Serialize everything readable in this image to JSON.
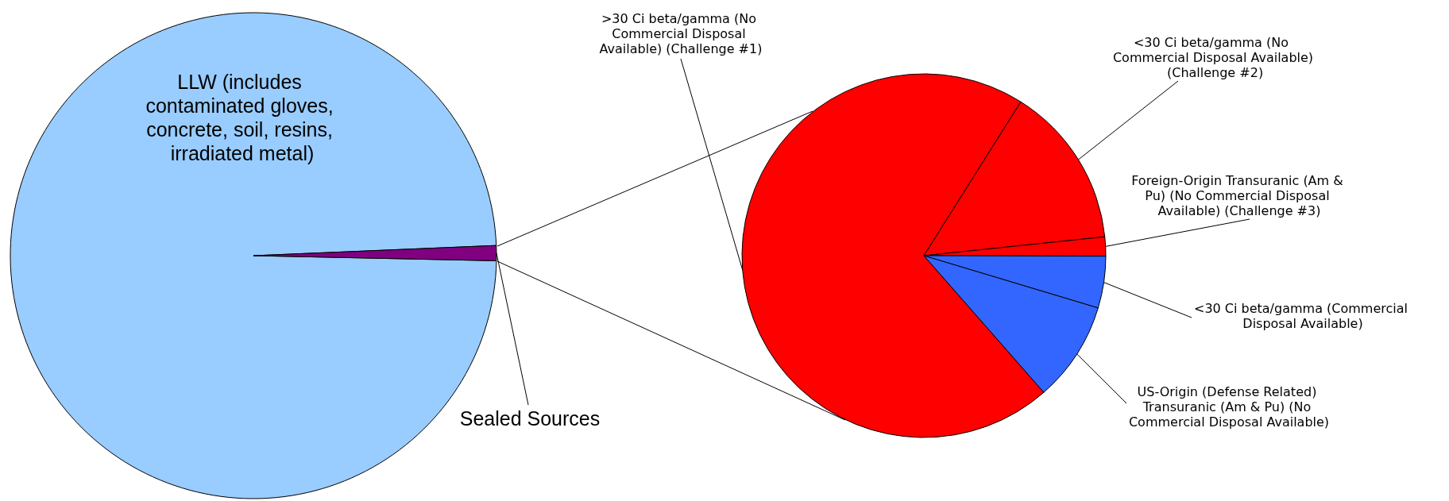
{
  "chart_data": [
    {
      "type": "pie",
      "categories": [
        "LLW (includes contaminated gloves, concrete, soil, resins, irradiated metal)",
        "Sealed Sources"
      ],
      "values": [
        99,
        1
      ],
      "colors": [
        "#99ccff",
        "#800080"
      ]
    },
    {
      "type": "pie",
      "categories": [
        ">30 Ci beta/gamma (No Commercial Disposal Available) (Challenge #1)",
        "<30 Ci beta/gamma (No Commercial Disposal Available) (Challenge #2)",
        "Foreign-Origin Transuranic (Am & Pu) (No Commercial Disposal Available) (Challenge #3)",
        "<30 Ci beta/gamma (Commercial Disposal Available)",
        "US-Origin (Defense Related) Transuranic (Am & Pu) (No Commercial Disposal Available)"
      ],
      "values": [
        70.4,
        14.4,
        1.7,
        4.6,
        8.9
      ],
      "colors": [
        "#ff0000",
        "#ff0000",
        "#ff0000",
        "#3366ff",
        "#3366ff"
      ]
    }
  ]
}
